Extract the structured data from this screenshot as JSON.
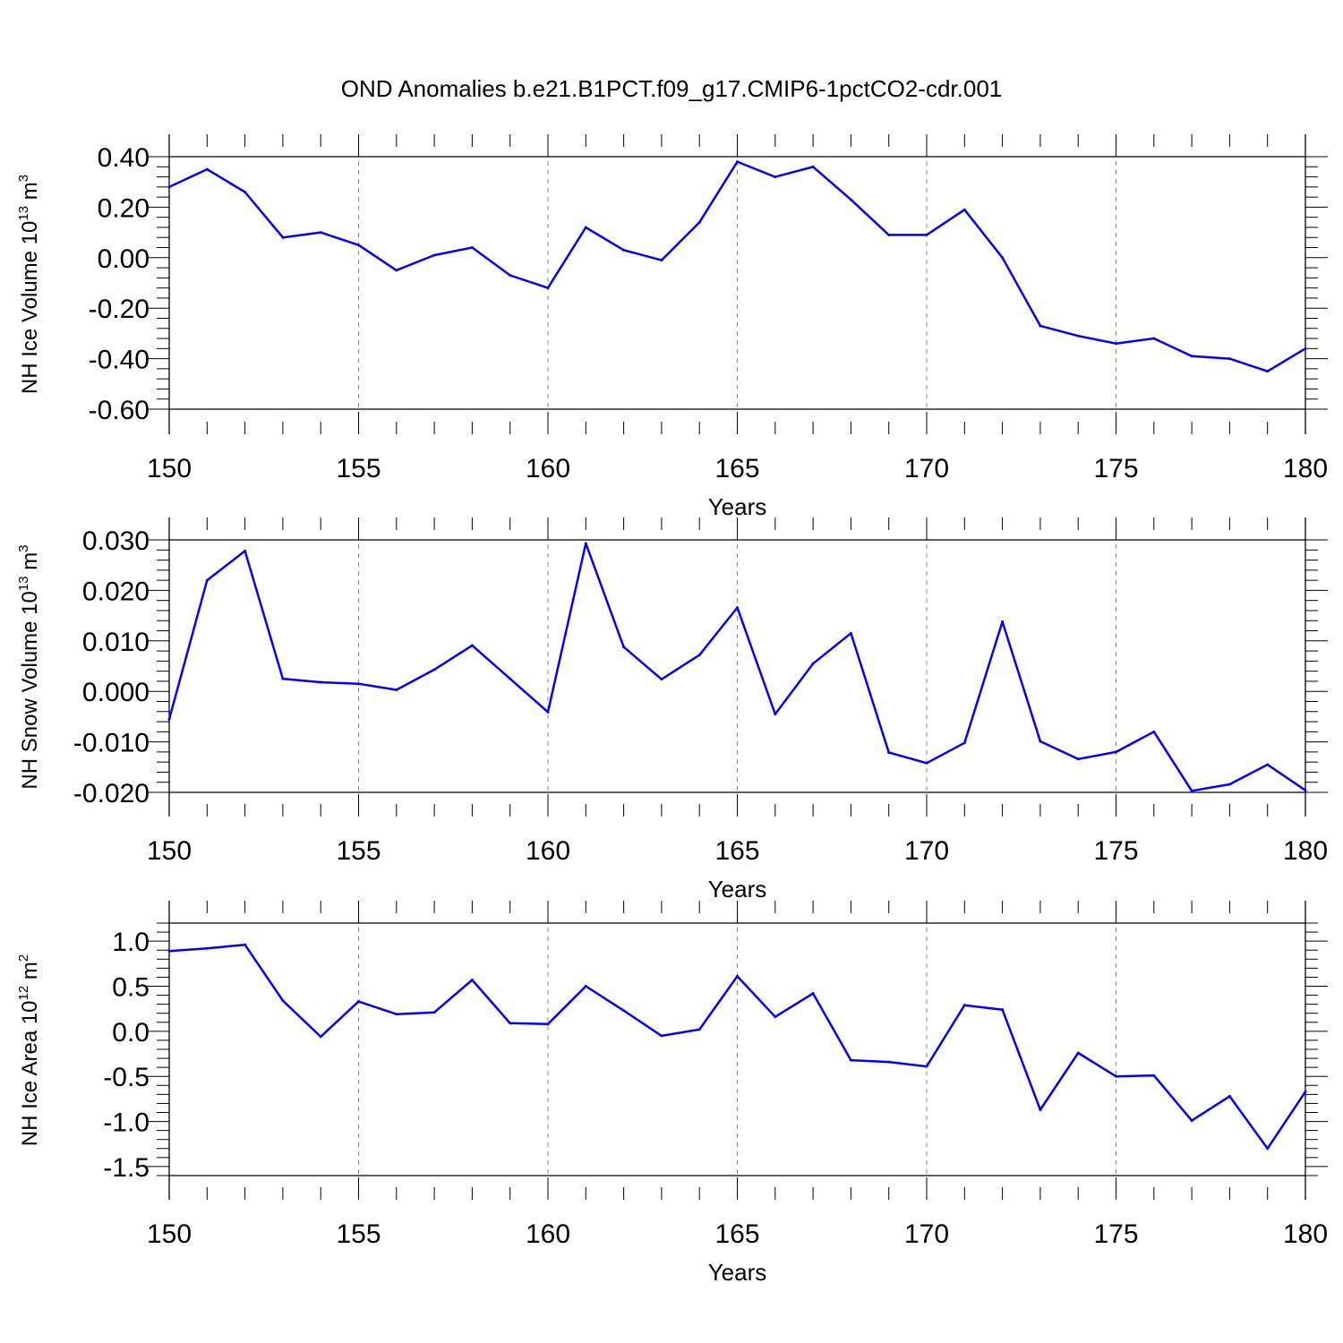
{
  "title": "OND Anomalies b.e21.B1PCT.f09_g17.CMIP6-1pctCO2-cdr.001",
  "colors": {
    "series": "#0000ff",
    "axis": "#000000",
    "grid": "#888888"
  },
  "chart_data": [
    {
      "type": "line",
      "ylabel_parts": [
        "NH Ice Volume 10",
        "13",
        " m",
        "3"
      ],
      "xlabel": "Years",
      "xlim": [
        150,
        180
      ],
      "ylim": [
        -0.6,
        0.4
      ],
      "xticks": [
        150,
        155,
        160,
        165,
        170,
        175,
        180
      ],
      "xtick_labels": [
        "150",
        "155",
        "160",
        "165",
        "170",
        "175",
        "180"
      ],
      "yticks": [
        -0.6,
        -0.4,
        -0.2,
        0.0,
        0.2,
        0.4
      ],
      "ytick_labels": [
        "-0.60",
        "-0.40",
        "-0.20",
        "0.00",
        "0.20",
        "0.40"
      ],
      "x": [
        150,
        151,
        152,
        153,
        154,
        155,
        156,
        157,
        158,
        159,
        160,
        161,
        162,
        163,
        164,
        165,
        166,
        167,
        168,
        169,
        170,
        171,
        172,
        173,
        174,
        175,
        176,
        177,
        178,
        179,
        180
      ],
      "y": [
        0.28,
        0.35,
        0.26,
        0.08,
        0.1,
        0.05,
        -0.05,
        0.01,
        0.04,
        -0.07,
        -0.12,
        0.12,
        0.03,
        -0.01,
        0.14,
        0.38,
        0.32,
        0.36,
        0.23,
        0.09,
        0.09,
        0.19,
        0.0,
        -0.27,
        -0.31,
        -0.34,
        -0.32,
        -0.39,
        -0.4,
        -0.45,
        -0.36
      ]
    },
    {
      "type": "line",
      "ylabel_parts": [
        "NH Snow Volume 10",
        "13",
        " m",
        "3"
      ],
      "xlabel": "Years",
      "xlim": [
        150,
        180
      ],
      "ylim": [
        -0.02,
        0.03
      ],
      "xticks": [
        150,
        155,
        160,
        165,
        170,
        175,
        180
      ],
      "xtick_labels": [
        "150",
        "155",
        "160",
        "165",
        "170",
        "175",
        "180"
      ],
      "yticks": [
        -0.02,
        -0.01,
        0.0,
        0.01,
        0.02,
        0.03
      ],
      "ytick_labels": [
        "-0.020",
        "-0.010",
        "0.000",
        "0.010",
        "0.020",
        "0.030"
      ],
      "x": [
        150,
        151,
        152,
        153,
        154,
        155,
        156,
        157,
        158,
        159,
        160,
        161,
        162,
        163,
        164,
        165,
        166,
        167,
        168,
        169,
        170,
        171,
        172,
        173,
        174,
        175,
        176,
        177,
        178,
        179,
        180
      ],
      "y": [
        -0.0055,
        0.022,
        0.0278,
        0.0025,
        0.0018,
        0.0015,
        0.0003,
        0.0043,
        0.0091,
        0.0025,
        -0.0041,
        0.0293,
        0.0088,
        0.0024,
        0.0072,
        0.0166,
        -0.0045,
        0.0055,
        0.0115,
        -0.0121,
        -0.0142,
        -0.0102,
        0.0138,
        -0.0099,
        -0.0134,
        -0.012,
        -0.008,
        -0.0197,
        -0.0184,
        -0.0145,
        -0.0196
      ]
    },
    {
      "type": "line",
      "ylabel_parts": [
        "NH Ice Area 10",
        "12",
        " m",
        "2"
      ],
      "xlabel": "Years",
      "xlim": [
        150,
        180
      ],
      "ylim": [
        -1.6,
        1.2
      ],
      "xticks": [
        150,
        155,
        160,
        165,
        170,
        175,
        180
      ],
      "xtick_labels": [
        "150",
        "155",
        "160",
        "165",
        "170",
        "175",
        "180"
      ],
      "yticks": [
        -1.5,
        -1.0,
        -0.5,
        0.0,
        0.5,
        1.0
      ],
      "ytick_labels": [
        "-1.5",
        "-1.0",
        "-0.5",
        "0.0",
        "0.5",
        "1.0"
      ],
      "x": [
        150,
        151,
        152,
        153,
        154,
        155,
        156,
        157,
        158,
        159,
        160,
        161,
        162,
        163,
        164,
        165,
        166,
        167,
        168,
        169,
        170,
        171,
        172,
        173,
        174,
        175,
        176,
        177,
        178,
        179,
        180
      ],
      "y": [
        0.89,
        0.92,
        0.96,
        0.34,
        -0.06,
        0.33,
        0.19,
        0.21,
        0.57,
        0.09,
        0.08,
        0.5,
        0.23,
        -0.05,
        0.02,
        0.61,
        0.16,
        0.42,
        -0.32,
        -0.34,
        -0.39,
        0.29,
        0.24,
        -0.87,
        -0.24,
        -0.5,
        -0.49,
        -0.99,
        -0.72,
        -1.3,
        -0.67
      ]
    }
  ]
}
